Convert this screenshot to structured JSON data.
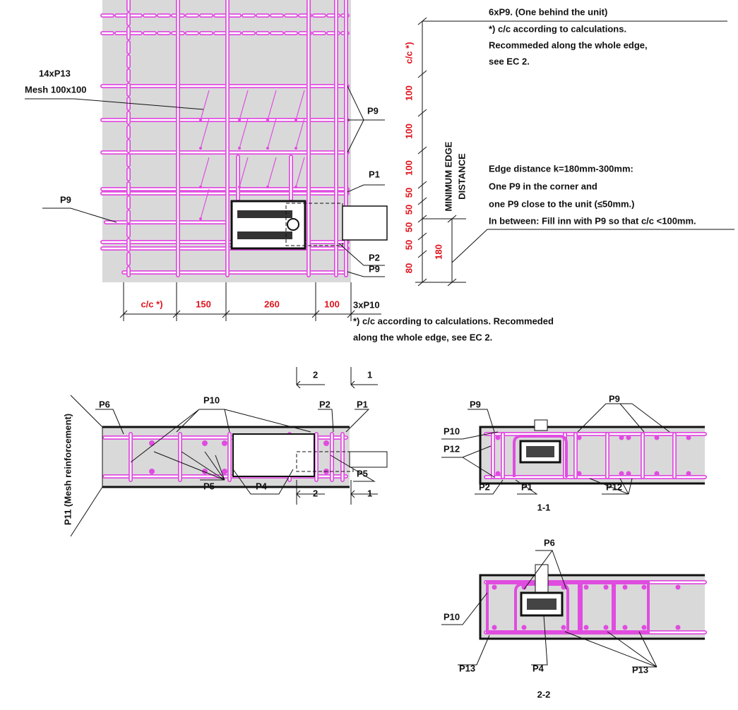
{
  "plan": {
    "top_notes": [
      "6xP9. (One behind the unit)",
      "*) c/c according to calculations.",
      "Recommeded along the whole edge,",
      "see EC 2."
    ],
    "mesh_label": [
      "14xP13",
      "Mesh 100x100"
    ],
    "labels": [
      "P9",
      "P1",
      "P9",
      "P2",
      "P9"
    ],
    "edge_notes": [
      "Edge distance k=180mm-300mm:",
      "One P9 in the corner and",
      "one P9 close to the unit (≤50mm.)",
      "In between: Fill inn with P9 so that c/c <100mm."
    ],
    "vertical_dims": [
      "c/c *)",
      "100",
      "100",
      "100",
      "50",
      "50",
      "50",
      "50",
      "80"
    ],
    "edge_dim": "180",
    "edge_title": [
      "MINIMUM EDGE",
      "DISTANCE"
    ],
    "bottom_dims": [
      "c/c *)",
      "150",
      "260",
      "100"
    ],
    "bottom_notes": [
      "3xP10",
      "*) c/c according to calculations. Recommeded",
      "along the whole edge, see EC 2."
    ]
  },
  "elevation": {
    "cut_marks": [
      "2",
      "1",
      "2",
      "1"
    ],
    "labels": [
      "P6",
      "P10",
      "P2",
      "P1",
      "P11 (Mesh reinforcement)",
      "P5",
      "P4",
      "P5"
    ]
  },
  "section_1_1": {
    "labels": [
      "P9",
      "P9",
      "P10",
      "P12",
      "P2",
      "P1",
      "P12"
    ],
    "title": "1-1"
  },
  "section_2_2": {
    "labels": [
      "P6",
      "P10",
      "P13",
      "P4",
      "P13"
    ],
    "title": "2-2"
  }
}
